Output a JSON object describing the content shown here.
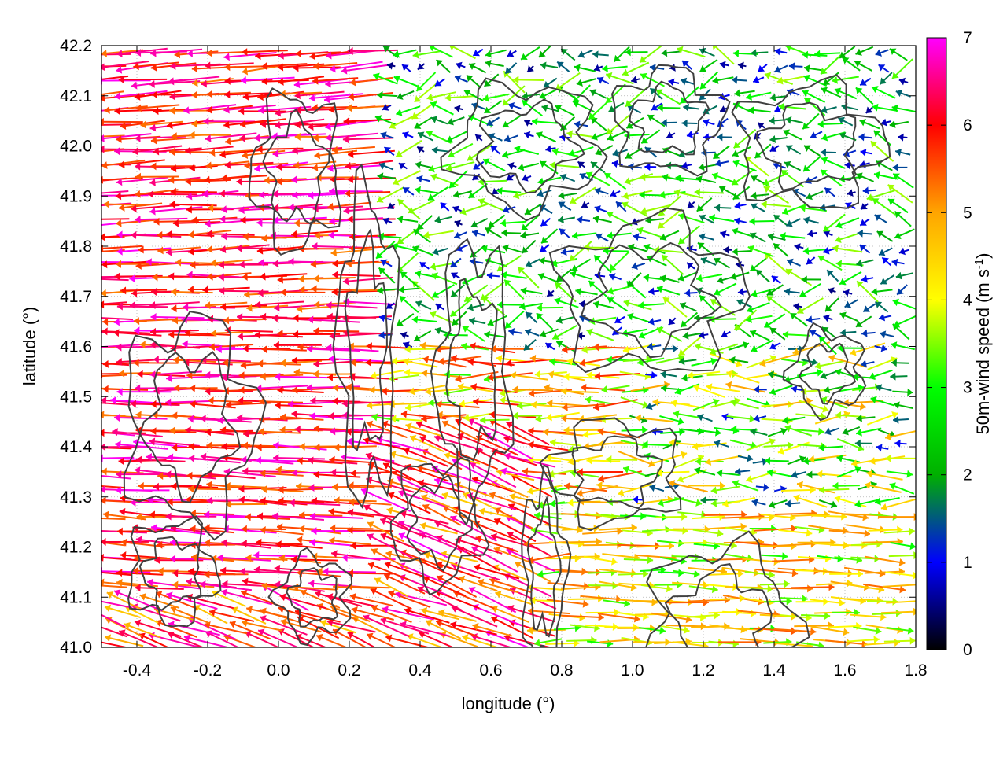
{
  "chart_data": {
    "type": "vector-field",
    "xlabel": "longitude (°)",
    "ylabel": "latitude (°)",
    "xlim": [
      -0.5,
      1.8
    ],
    "ylim": [
      41.0,
      42.2
    ],
    "x_ticks": [
      "-0.4",
      "-0.2",
      "0.0",
      "0.2",
      "0.4",
      "0.6",
      "0.8",
      "1.0",
      "1.2",
      "1.4",
      "1.6",
      "1.8"
    ],
    "y_ticks": [
      "41.0",
      "41.1",
      "41.2",
      "41.3",
      "41.4",
      "41.5",
      "41.6",
      "41.7",
      "41.8",
      "41.9",
      "42.0",
      "42.1",
      "42.2"
    ],
    "grid": true,
    "colorbar": {
      "label_main": "50m-wind speed (m s",
      "label_sup": "-1",
      "label_end": ")",
      "range": [
        0,
        7
      ],
      "ticks": [
        "0",
        "1",
        "2",
        "3",
        "4",
        "5",
        "6",
        "7"
      ],
      "palette": [
        "#000000",
        "#0000ff",
        "#00b000",
        "#00ff00",
        "#ffff00",
        "#ffa500",
        "#ff0000",
        "#ff00ff"
      ]
    },
    "contour_color": "#404040",
    "wind_regimes": [
      {
        "region": "west",
        "lon": [
          -0.5,
          0.3
        ],
        "lat": [
          41.0,
          42.2
        ],
        "direction": "easterly",
        "speed": [
          5,
          7
        ]
      },
      {
        "region": "northeast",
        "lon": [
          0.3,
          1.8
        ],
        "lat": [
          41.6,
          42.2
        ],
        "direction": "variable",
        "speed": [
          0.5,
          3.5
        ]
      },
      {
        "region": "southeast",
        "lon": [
          0.8,
          1.8
        ],
        "lat": [
          41.0,
          41.3
        ],
        "direction": "westerly",
        "speed": [
          3,
          5.5
        ]
      }
    ]
  }
}
